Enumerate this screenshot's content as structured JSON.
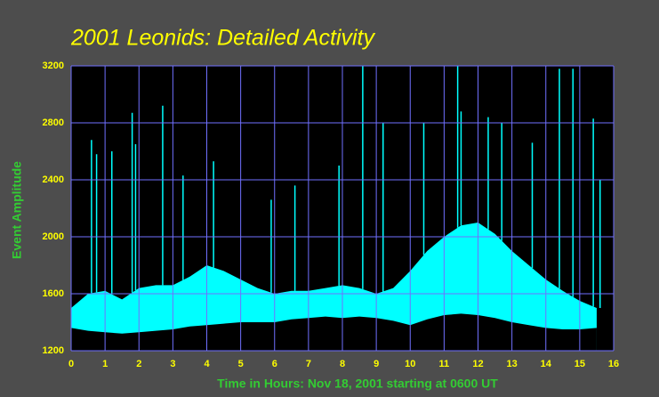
{
  "chart_data": {
    "type": "range",
    "title": "2001 Leonids: Detailed Activity",
    "x_label": "Time in Hours: Nov 18, 2001 starting at 0600 UT",
    "y_label": "Event Amplitude",
    "xlim": [
      0,
      16
    ],
    "xticks": [
      0,
      1,
      2,
      3,
      4,
      5,
      6,
      7,
      8,
      9,
      10,
      11,
      12,
      13,
      14,
      15,
      16
    ],
    "ylim": [
      1200,
      3200
    ],
    "yticks": [
      1200,
      1600,
      2000,
      2400,
      2800,
      3200
    ],
    "grid": true,
    "color": "#00ffff",
    "grid_color": "#7070ff",
    "x": [
      0,
      0.5,
      1,
      1.5,
      2,
      2.5,
      3,
      3.5,
      4,
      4.5,
      5,
      5.5,
      6,
      6.5,
      7,
      7.5,
      8,
      8.5,
      9,
      9.5,
      10,
      10.5,
      11,
      11.5,
      12,
      12.5,
      13,
      13.5,
      14,
      14.5,
      15,
      15.5
    ],
    "high": [
      1500,
      1600,
      1620,
      1560,
      1640,
      1660,
      1660,
      1720,
      1800,
      1760,
      1700,
      1640,
      1600,
      1620,
      1620,
      1640,
      1660,
      1640,
      1600,
      1640,
      1760,
      1900,
      2000,
      2080,
      2100,
      2020,
      1900,
      1800,
      1700,
      1620,
      1550,
      1500
    ],
    "low": [
      1360,
      1340,
      1330,
      1320,
      1330,
      1340,
      1350,
      1370,
      1380,
      1390,
      1400,
      1400,
      1400,
      1420,
      1430,
      1440,
      1430,
      1440,
      1430,
      1410,
      1380,
      1420,
      1450,
      1460,
      1450,
      1430,
      1400,
      1380,
      1360,
      1350,
      1350,
      1360
    ],
    "spikes": {
      "x": [
        0.6,
        0.75,
        1.2,
        1.8,
        1.9,
        2.7,
        3.3,
        4.2,
        5.9,
        6.6,
        7.9,
        8.6,
        9.2,
        10.4,
        11.4,
        11.5,
        12.3,
        12.7,
        13.6,
        14.4,
        14.8,
        15.4,
        15.6
      ],
      "values": [
        2680,
        2580,
        2600,
        2870,
        2650,
        2920,
        2430,
        2530,
        2260,
        2360,
        2500,
        3200,
        2800,
        2800,
        3200,
        2880,
        2840,
        2800,
        2660,
        3180,
        3180,
        2830,
        2400
      ]
    }
  }
}
